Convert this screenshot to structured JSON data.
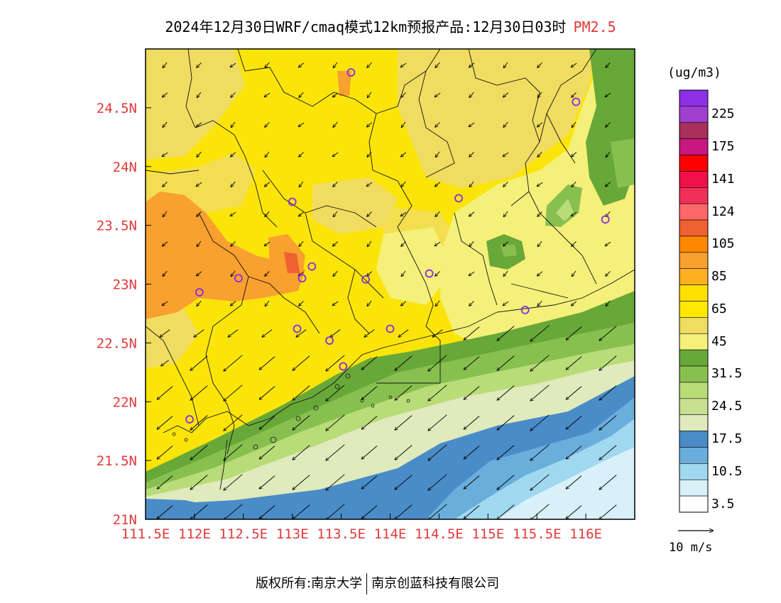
{
  "title": {
    "main": "2024年12月30日WRF/cmaq模式12km预报产品:12月30日03时",
    "pollutant": "PM2.5"
  },
  "map": {
    "lon_range": [
      111.5,
      116.5
    ],
    "lat_range": [
      21.0,
      25.0
    ],
    "lon_ticks": [
      {
        "value": 111.5,
        "label": "111.5E"
      },
      {
        "value": 112.0,
        "label": "112E"
      },
      {
        "value": 112.5,
        "label": "112.5E"
      },
      {
        "value": 113.0,
        "label": "113E"
      },
      {
        "value": 113.5,
        "label": "113.5E"
      },
      {
        "value": 114.0,
        "label": "114E"
      },
      {
        "value": 114.5,
        "label": "114.5E"
      },
      {
        "value": 115.0,
        "label": "115E"
      },
      {
        "value": 115.5,
        "label": "115.5E"
      },
      {
        "value": 116.0,
        "label": "116E"
      }
    ],
    "lat_ticks": [
      {
        "value": 21.0,
        "label": "21N"
      },
      {
        "value": 21.5,
        "label": "21.5N"
      },
      {
        "value": 22.0,
        "label": "22N"
      },
      {
        "value": 22.5,
        "label": "22.5N"
      },
      {
        "value": 23.0,
        "label": "23N"
      },
      {
        "value": 23.5,
        "label": "23.5N"
      },
      {
        "value": 24.0,
        "label": "24N"
      },
      {
        "value": 24.5,
        "label": "24.5N"
      }
    ],
    "tick_label_color": "#e03a3a",
    "city_marker_color": "#8a2be2",
    "cities": [
      {
        "lon": 113.6,
        "lat": 24.8
      },
      {
        "lon": 115.9,
        "lat": 24.55
      },
      {
        "lon": 113.0,
        "lat": 23.7
      },
      {
        "lon": 114.7,
        "lat": 23.73
      },
      {
        "lon": 116.2,
        "lat": 23.55
      },
      {
        "lon": 112.45,
        "lat": 23.05
      },
      {
        "lon": 112.05,
        "lat": 22.93
      },
      {
        "lon": 113.1,
        "lat": 23.05
      },
      {
        "lon": 113.2,
        "lat": 23.15
      },
      {
        "lon": 113.75,
        "lat": 23.04
      },
      {
        "lon": 114.4,
        "lat": 23.09
      },
      {
        "lon": 115.38,
        "lat": 22.78
      },
      {
        "lon": 113.05,
        "lat": 22.62
      },
      {
        "lon": 113.38,
        "lat": 22.52
      },
      {
        "lon": 114.0,
        "lat": 22.62
      },
      {
        "lon": 113.52,
        "lat": 22.3
      },
      {
        "lon": 111.95,
        "lat": 21.85
      }
    ]
  },
  "colorbar": {
    "unit": "(ug/m3)",
    "colors_top_to_bottom": [
      "#8b30e6",
      "#a040d0",
      "#a8305a",
      "#c81880",
      "#ff0000",
      "#f0104a",
      "#f03058",
      "#ff6868",
      "#f06030",
      "#ff8800",
      "#f8a030",
      "#ffb020",
      "#ffe000",
      "#ffe800",
      "#f0dc60",
      "#f4f07a",
      "#68a838",
      "#88c050",
      "#b8dc78",
      "#c8e090",
      "#e0eabc",
      "#4a8cc8",
      "#6aaedc",
      "#a0d8f0",
      "#d8f0f8",
      "#ffffff"
    ],
    "labels": [
      {
        "text": "225",
        "boundary": 2
      },
      {
        "text": "175",
        "boundary": 4
      },
      {
        "text": "141",
        "boundary": 6
      },
      {
        "text": "124",
        "boundary": 8
      },
      {
        "text": "105",
        "boundary": 10
      },
      {
        "text": "85",
        "boundary": 12
      },
      {
        "text": "65",
        "boundary": 14
      },
      {
        "text": "45",
        "boundary": 16
      },
      {
        "text": "31.5",
        "boundary": 18
      },
      {
        "text": "24.5",
        "boundary": 20
      },
      {
        "text": "17.5",
        "boundary": 22
      },
      {
        "text": "10.5",
        "boundary": 24
      },
      {
        "text": "3.5",
        "boundary": 26
      }
    ]
  },
  "wind_reference": {
    "label": "10 m/s"
  },
  "footer": {
    "left": "版权所有:南京大学",
    "right": "南京创蓝科技有限公司"
  }
}
